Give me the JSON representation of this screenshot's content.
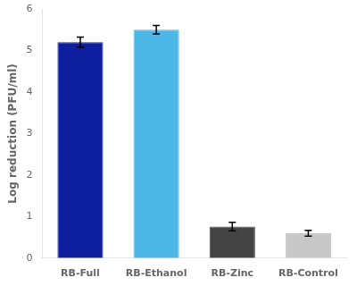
{
  "chart_data": {
    "type": "bar",
    "categories": [
      "RB-Full",
      "RB-Ethanol",
      "RB-Zinc",
      "RB-Control"
    ],
    "values": [
      5.2,
      5.5,
      0.76,
      0.6
    ],
    "errors": [
      0.12,
      0.1,
      0.1,
      0.07
    ],
    "colors": [
      "#0d1f9e",
      "#4db8e8",
      "#444444",
      "#c8c8c8"
    ],
    "ylabel": "Log reduction (PFU/ml)",
    "ylim": [
      0,
      6
    ],
    "yticks": [
      0,
      1,
      2,
      3,
      4,
      5,
      6
    ],
    "grid": false
  }
}
